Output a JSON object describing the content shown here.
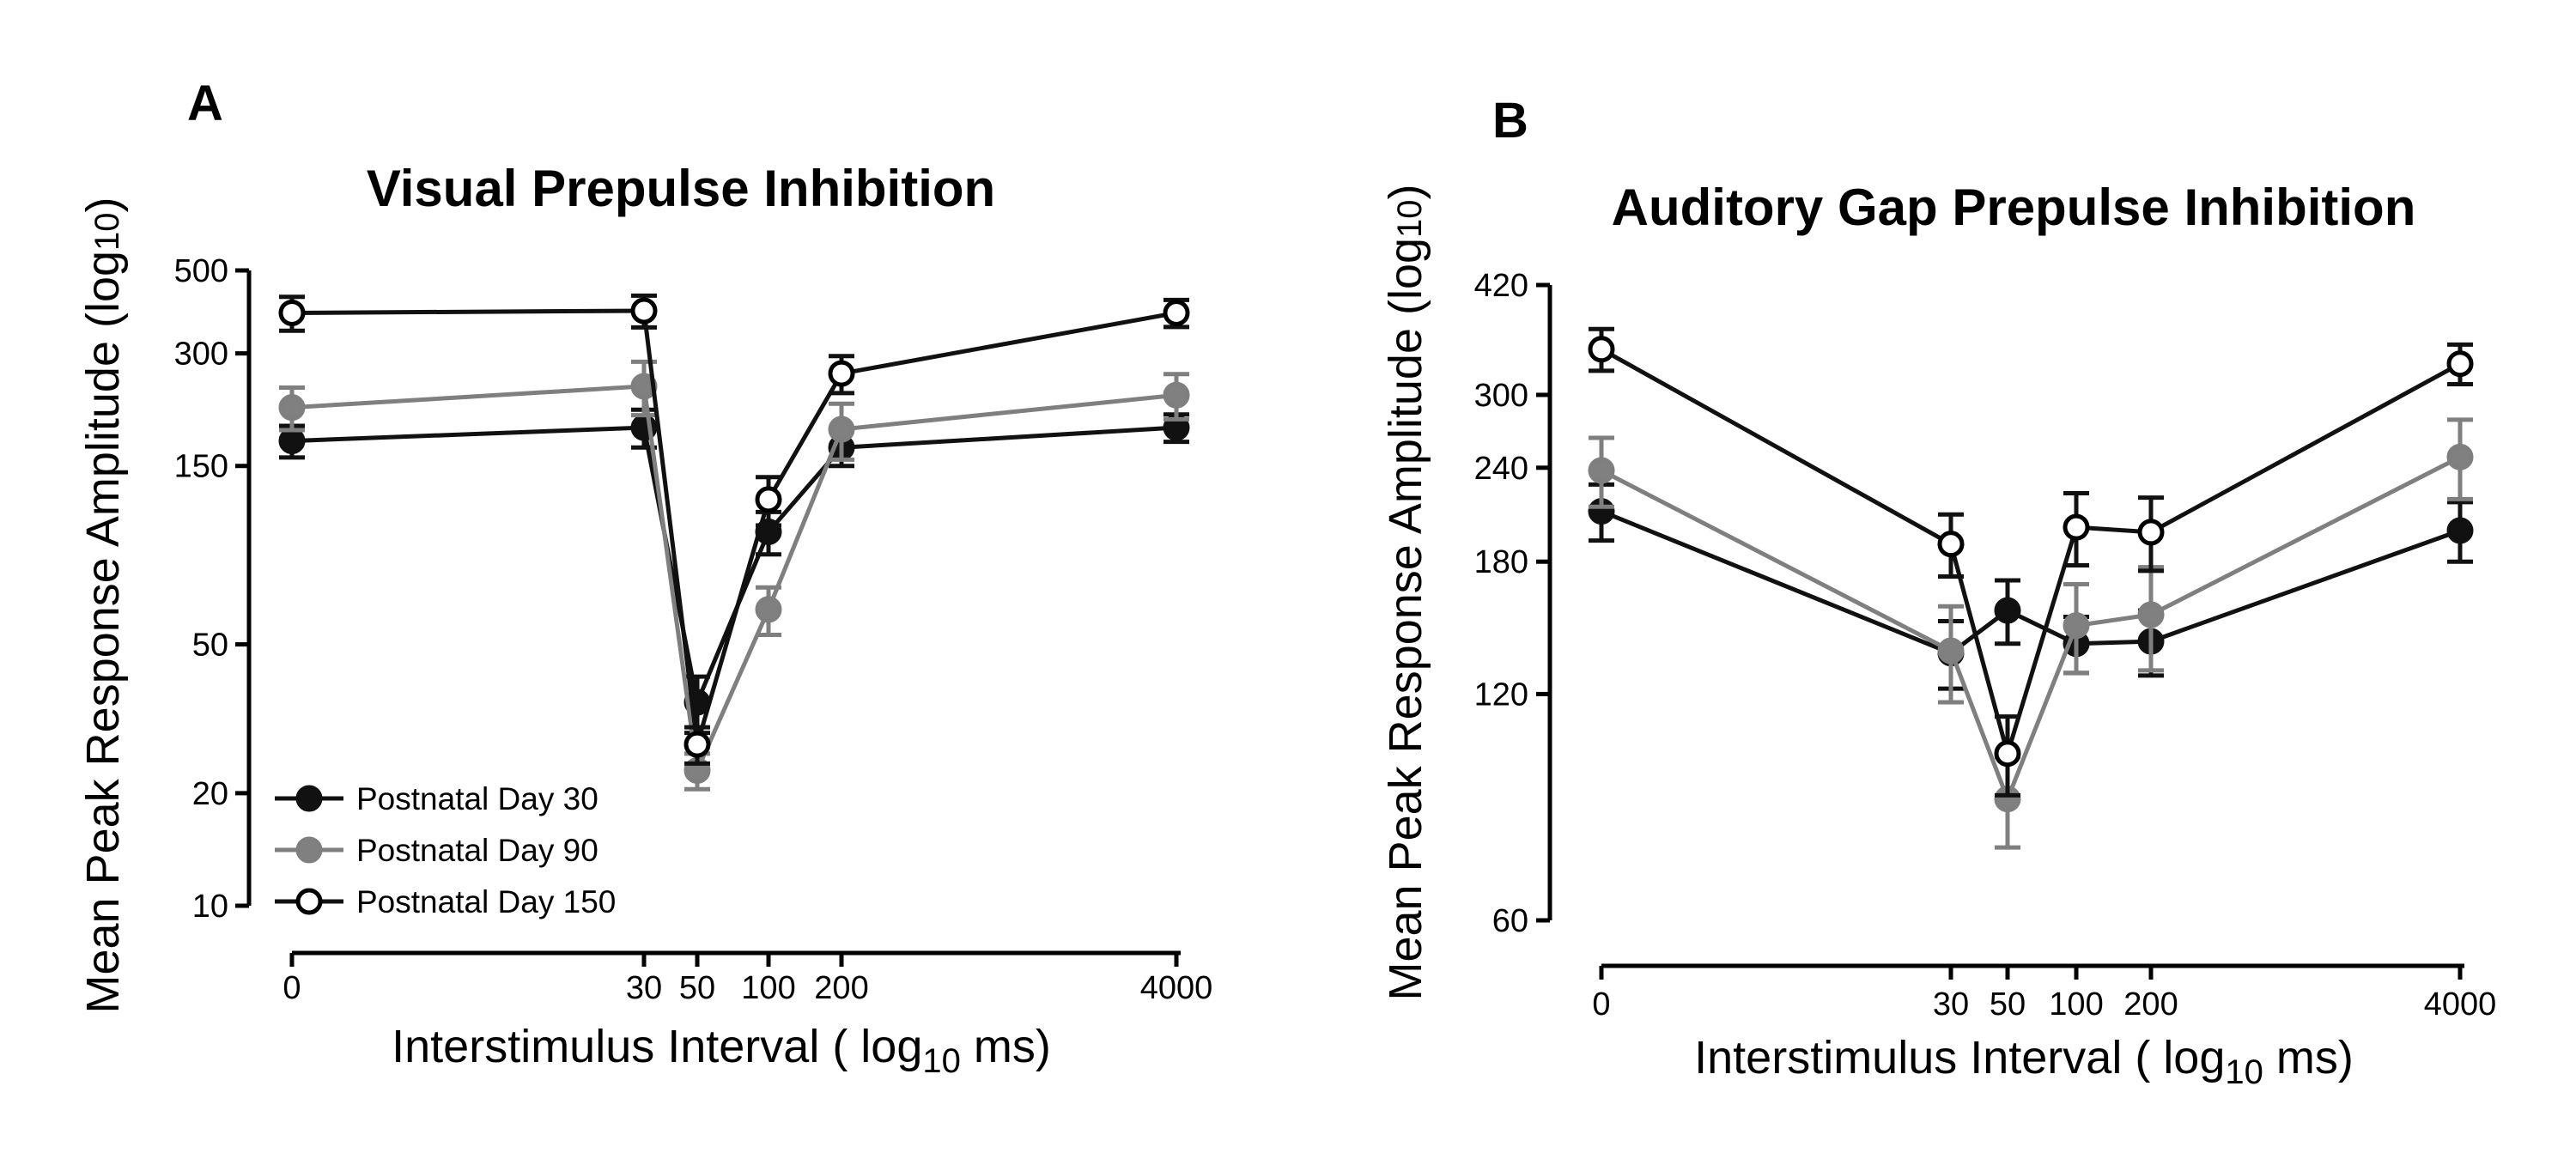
{
  "chart_data": [
    {
      "panel": "A",
      "type": "line",
      "title": "Visual Prepulse Inhibition",
      "ylabel_main": "Mean Peak Response  Amplitude (log",
      "ylabel_sub": "10",
      "ylabel_close": ")",
      "xlabel_main": "Interstimulus Interval ( log",
      "xlabel_sub": "10",
      "xlabel_close": " ms)",
      "x_ticks": [
        "0",
        "30",
        "50",
        "100",
        "200",
        "4000"
      ],
      "y_ticks": [
        10,
        20,
        50,
        150,
        300,
        500
      ],
      "ylim": [
        10,
        500
      ],
      "legend": [
        "Postnatal Day 30",
        "Postnatal Day 90",
        "Postnatal Day 150"
      ],
      "series": [
        {
          "name": "Postnatal Day 30",
          "color": "#111111",
          "fill": "#111111",
          "values": [
            175,
            190,
            35,
            100,
            168,
            190
          ],
          "errors": [
            17,
            22,
            6,
            13,
            18,
            16
          ]
        },
        {
          "name": "Postnatal Day 90",
          "color": "#7f7f7f",
          "fill": "#808080",
          "values": [
            215,
            245,
            23,
            62,
            188,
            232
          ],
          "errors": [
            28,
            40,
            2.5,
            9,
            32,
            32
          ]
        },
        {
          "name": "Postnatal Day 150",
          "color": "#111111",
          "fill": "#ffffff",
          "values": [
            385,
            390,
            27,
            122,
            265,
            385
          ],
          "errors": [
            40,
            38,
            3,
            18,
            30,
            32
          ]
        }
      ]
    },
    {
      "panel": "B",
      "type": "line",
      "title": "Auditory Gap Prepulse Inhibition",
      "ylabel_main": "Mean Peak Response  Amplitude (log",
      "ylabel_sub": "10",
      "ylabel_close": ")",
      "xlabel_main": "Interstimulus Interval ( log",
      "xlabel_sub": "10",
      "xlabel_close": " ms)",
      "x_ticks": [
        "0",
        "30",
        "50",
        "100",
        "200",
        "4000"
      ],
      "y_ticks": [
        60,
        120,
        180,
        240,
        300,
        420
      ],
      "ylim": [
        60,
        420
      ],
      "series": [
        {
          "name": "Postnatal Day 30",
          "color": "#111111",
          "fill": "#111111",
          "values": [
            210,
            136,
            155,
            140,
            141,
            198
          ],
          "errors": [
            18,
            14,
            15,
            12,
            14,
            18
          ]
        },
        {
          "name": "Postnatal Day 90",
          "color": "#7f7f7f",
          "fill": "#808080",
          "values": [
            238,
            137,
            87,
            148,
            153,
            248
          ],
          "errors": [
            25,
            20,
            12,
            20,
            24,
            30
          ]
        },
        {
          "name": "Postnatal Day 150",
          "color": "#111111",
          "fill": "#ffffff",
          "values": [
            345,
            190,
            100,
            200,
            197,
            330
          ],
          "errors": [
            22,
            18,
            12,
            22,
            22,
            20
          ]
        }
      ]
    }
  ]
}
